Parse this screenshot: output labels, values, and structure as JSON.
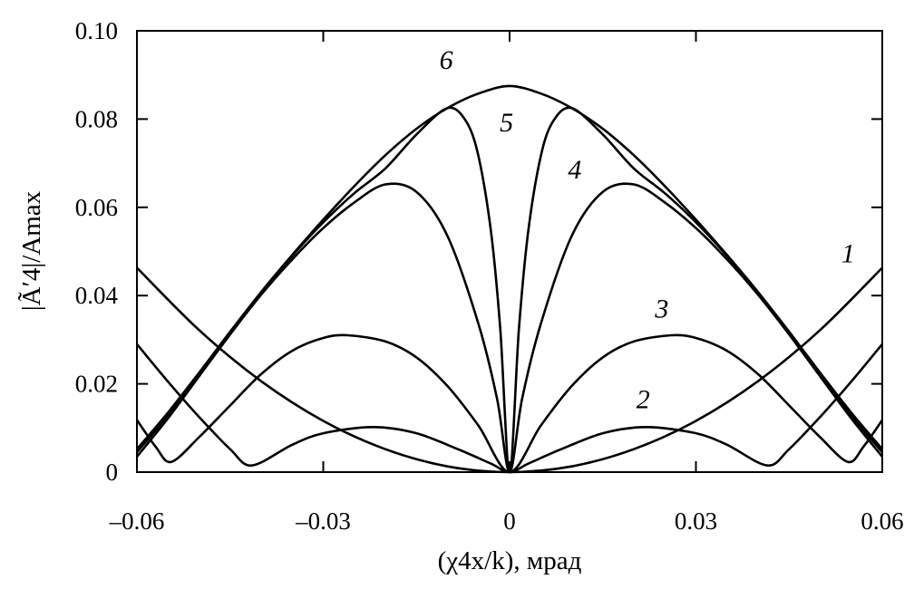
{
  "chart_data": {
    "type": "line",
    "xlabel": "(χ4x/k), мрад",
    "ylabel": "|Ã′4|/Amax",
    "xlim": [
      -0.06,
      0.06
    ],
    "ylim": [
      0,
      0.1
    ],
    "x_ticks": [
      -0.06,
      -0.03,
      0,
      0.03,
      0.06
    ],
    "x_tick_labels": [
      "–0.06",
      "–0.03",
      "0",
      "0.03",
      "0.06"
    ],
    "y_ticks": [
      0,
      0.02,
      0.04,
      0.06,
      0.08,
      0.1
    ],
    "y_tick_labels": [
      "0",
      "0.02",
      "0.04",
      "0.06",
      "0.08",
      "0.10"
    ],
    "grid": false,
    "series": [
      {
        "name": "1",
        "x": [
          -0.06,
          -0.05,
          -0.04,
          -0.03,
          -0.02,
          -0.01,
          0,
          0.01,
          0.02,
          0.03,
          0.04,
          0.05,
          0.06
        ],
        "y": [
          0.0463,
          0.0322,
          0.0206,
          0.0116,
          0.0052,
          0.0013,
          0,
          0.0013,
          0.0052,
          0.0116,
          0.0206,
          0.0322,
          0.0463
        ]
      },
      {
        "name": "2",
        "x": [
          -0.06,
          -0.055,
          -0.05,
          -0.045,
          -0.0415,
          -0.035,
          -0.03,
          -0.022,
          -0.015,
          -0.008,
          -0.003,
          0,
          0.003,
          0.008,
          0.015,
          0.022,
          0.03,
          0.035,
          0.0415,
          0.045,
          0.05,
          0.055,
          0.06
        ],
        "y": [
          0.029,
          0.0205,
          0.0125,
          0.0052,
          0.0015,
          0.0062,
          0.0088,
          0.0102,
          0.0088,
          0.005,
          0.0019,
          0,
          0.0019,
          0.005,
          0.0088,
          0.0102,
          0.0088,
          0.0062,
          0.0015,
          0.0052,
          0.0125,
          0.0205,
          0.029
        ]
      },
      {
        "name": "3",
        "x": [
          -0.06,
          -0.057,
          -0.0545,
          -0.05,
          -0.045,
          -0.04,
          -0.035,
          -0.03,
          -0.026,
          -0.02,
          -0.015,
          -0.01,
          -0.005,
          0,
          0.005,
          0.01,
          0.015,
          0.02,
          0.026,
          0.03,
          0.035,
          0.04,
          0.045,
          0.05,
          0.0545,
          0.057,
          0.06
        ],
        "y": [
          0.0118,
          0.0058,
          0.0023,
          0.0079,
          0.0151,
          0.0222,
          0.0275,
          0.0304,
          0.031,
          0.0296,
          0.026,
          0.0195,
          0.0105,
          0,
          0.0105,
          0.0195,
          0.026,
          0.0296,
          0.031,
          0.0304,
          0.0275,
          0.0222,
          0.0151,
          0.0079,
          0.0023,
          0.0058,
          0.0118
        ]
      },
      {
        "name": "4",
        "x": [
          -0.06,
          -0.055,
          -0.05,
          -0.045,
          -0.04,
          -0.035,
          -0.03,
          -0.025,
          -0.02,
          -0.015,
          -0.01,
          -0.005,
          -0.002,
          0,
          0.002,
          0.005,
          0.01,
          0.015,
          0.02,
          0.025,
          0.03,
          0.035,
          0.04,
          0.045,
          0.05,
          0.055,
          0.06
        ],
        "y": [
          0.0035,
          0.0122,
          0.0217,
          0.0312,
          0.0402,
          0.0482,
          0.0553,
          0.0611,
          0.0652,
          0.0635,
          0.0535,
          0.0335,
          0.0165,
          0,
          0.0165,
          0.0335,
          0.0535,
          0.0635,
          0.0652,
          0.0611,
          0.0553,
          0.0482,
          0.0402,
          0.0312,
          0.0217,
          0.0122,
          0.0035
        ]
      },
      {
        "name": "5",
        "x": [
          -0.06,
          -0.055,
          -0.05,
          -0.045,
          -0.04,
          -0.035,
          -0.03,
          -0.025,
          -0.02,
          -0.015,
          -0.01,
          -0.007,
          -0.005,
          -0.003,
          -0.0015,
          0,
          0.0015,
          0.003,
          0.005,
          0.007,
          0.01,
          0.015,
          0.02,
          0.025,
          0.03,
          0.035,
          0.04,
          0.045,
          0.05,
          0.055,
          0.06
        ],
        "y": [
          0.0045,
          0.0129,
          0.0222,
          0.0314,
          0.0405,
          0.049,
          0.0566,
          0.0632,
          0.0688,
          0.0765,
          0.0825,
          0.0795,
          0.0715,
          0.0545,
          0.0325,
          0,
          0.0325,
          0.0545,
          0.0715,
          0.0795,
          0.0825,
          0.0765,
          0.0688,
          0.0632,
          0.0566,
          0.049,
          0.0405,
          0.0314,
          0.0222,
          0.0129,
          0.0045
        ]
      },
      {
        "name": "6",
        "x": [
          -0.06,
          -0.055,
          -0.05,
          -0.045,
          -0.04,
          -0.035,
          -0.03,
          -0.025,
          -0.02,
          -0.015,
          -0.01,
          -0.005,
          0,
          0.005,
          0.01,
          0.015,
          0.02,
          0.025,
          0.03,
          0.035,
          0.04,
          0.045,
          0.05,
          0.055,
          0.06
        ],
        "y": [
          0.0052,
          0.0135,
          0.0225,
          0.0318,
          0.0408,
          0.0492,
          0.0572,
          0.0648,
          0.0718,
          0.0778,
          0.0825,
          0.0858,
          0.0875,
          0.0858,
          0.0825,
          0.0778,
          0.0718,
          0.0648,
          0.0572,
          0.0492,
          0.0408,
          0.0318,
          0.0225,
          0.0135,
          0.0052
        ]
      }
    ],
    "curve_labels": [
      {
        "text": "1",
        "x": 0.0545,
        "y": 0.0475
      },
      {
        "text": "2",
        "x": 0.0215,
        "y": 0.0145
      },
      {
        "text": "3",
        "x": 0.0245,
        "y": 0.035
      },
      {
        "text": "4",
        "x": 0.0105,
        "y": 0.0665
      },
      {
        "text": "5",
        "x": -0.0005,
        "y": 0.0772
      },
      {
        "text": "6",
        "x": -0.0102,
        "y": 0.0914
      }
    ]
  }
}
